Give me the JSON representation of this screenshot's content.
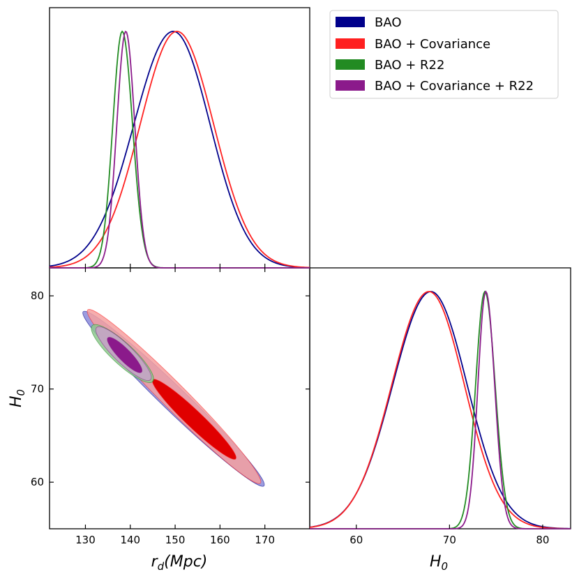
{
  "chart_data": {
    "type": "triangle-corner-plot",
    "legend": [
      {
        "name": "BAO",
        "color": "#00008B"
      },
      {
        "name": "BAO + Covariance",
        "color": "#FF2020"
      },
      {
        "name": "BAO + R22",
        "color": "#228B22"
      },
      {
        "name": "BAO + Covariance + R22",
        "color": "#8B1A8B"
      }
    ],
    "parameters": [
      {
        "name": "rd",
        "label_main": "r",
        "label_sub": "d",
        "label_rest": "(Mpc)",
        "range": [
          122,
          180
        ],
        "ticks": [
          130,
          140,
          150,
          160,
          170
        ]
      },
      {
        "name": "H0",
        "label_main": "H",
        "label_sub": "0",
        "label_rest": "",
        "range": [
          55,
          83
        ],
        "ticks": [
          60,
          70,
          80
        ]
      }
    ],
    "panels": [
      {
        "id": "rd-marginal",
        "type": "line",
        "parameter": "rd",
        "series": [
          {
            "name": "BAO",
            "mean": 149.6,
            "sigma_left": 8.8,
            "sigma_right": 8.2
          },
          {
            "name": "BAO + Covariance",
            "mean": 150.4,
            "sigma_left": 8.2,
            "sigma_right": 8.2
          },
          {
            "name": "BAO + R22",
            "mean": 138.2,
            "sigma_left": 2.1,
            "sigma_right": 2.3
          },
          {
            "name": "BAO + Covariance + R22",
            "mean": 139.0,
            "sigma_left": 2.0,
            "sigma_right": 2.0
          }
        ]
      },
      {
        "id": "H0-marginal",
        "type": "line",
        "parameter": "H0",
        "series": [
          {
            "name": "BAO",
            "mean": 68.0,
            "sigma_left": 4.1,
            "sigma_right": 3.9
          },
          {
            "name": "BAO + Covariance",
            "mean": 67.8,
            "sigma_left": 4.0,
            "sigma_right": 3.8
          },
          {
            "name": "BAO + R22",
            "mean": 73.8,
            "sigma_left": 1.0,
            "sigma_right": 1.1
          },
          {
            "name": "BAO + Covariance + R22",
            "mean": 73.9,
            "sigma_left": 0.85,
            "sigma_right": 0.95
          }
        ]
      },
      {
        "id": "rd-H0-joint",
        "type": "contour",
        "x": "rd",
        "y": "H0",
        "contours": [
          {
            "series": "BAO",
            "level": "95%",
            "points": [
              [
                129.5,
                78.3
              ],
              [
                169.8,
                59.6
              ]
            ],
            "half_width": 1.3,
            "fill": "#8B8BD9"
          },
          {
            "series": "BAO + Covariance",
            "level": "95%",
            "points": [
              [
                130.5,
                78.5
              ],
              [
                169.0,
                59.9
              ]
            ],
            "half_width": 1.35,
            "fill": "#F4A0A0"
          },
          {
            "series": "BAO + Covariance",
            "level": "68%",
            "points": [
              [
                145.0,
                71.0
              ],
              [
                163.5,
                62.5
              ]
            ],
            "half_width": 0.9,
            "fill": "#E00000"
          },
          {
            "series": "BAO + R22",
            "level": "95%",
            "points": [
              [
                131.5,
                76.8
              ],
              [
                145.0,
                70.8
              ]
            ],
            "half_width": 1.15,
            "fill": "#8FC88F"
          },
          {
            "series": "BAO + Covariance + R22",
            "level": "95%",
            "points": [
              [
                132.5,
                76.6
              ],
              [
                144.5,
                71.0
              ]
            ],
            "half_width": 1.0,
            "fill": "#C9A2C9"
          },
          {
            "series": "BAO + Covariance + R22",
            "level": "68%",
            "points": [
              [
                135.0,
                75.5
              ],
              [
                142.5,
                71.8
              ]
            ],
            "half_width": 0.65,
            "fill": "#8B1A8B"
          }
        ]
      }
    ]
  }
}
